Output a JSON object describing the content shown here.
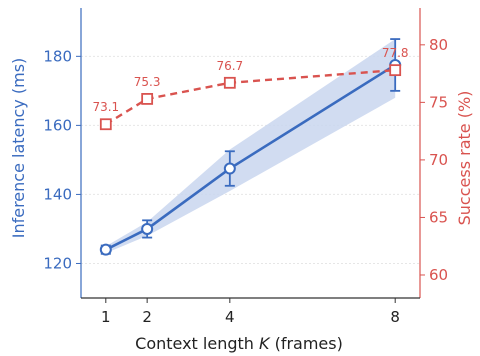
{
  "chart_data": {
    "type": "line",
    "x": [
      1,
      2,
      4,
      8
    ],
    "xlabel": "Context length K (frames)",
    "xlabel_parts": {
      "before": "Context length ",
      "italic": "K",
      "after": " (frames)"
    },
    "xticks": [
      "1",
      "2",
      "4",
      "8"
    ],
    "xlim": [
      0.4,
      8.6
    ],
    "grid": "horizontal, light dotted",
    "legend": "none",
    "left_axis": {
      "label": "Inference latency (ms)",
      "ylim": [
        110,
        194
      ],
      "ticks": [
        120,
        140,
        160,
        180
      ],
      "tick_labels": [
        "120",
        "140",
        "160",
        "180"
      ],
      "color": "#3a6bbf"
    },
    "right_axis": {
      "label": "Success rate (%)",
      "ylim": [
        58,
        83.2
      ],
      "ticks": [
        60,
        65,
        70,
        75,
        80
      ],
      "tick_labels": [
        "60",
        "65",
        "70",
        "75",
        "80"
      ],
      "color": "#d9534f"
    },
    "series": [
      {
        "axis": "left",
        "style": "solid line, circle markers, error bars, shaded band",
        "color": "#3a6bbf",
        "band_color": "#c9d6ee",
        "values": [
          124,
          130,
          147.5,
          177.5
        ],
        "error": [
          1.2,
          2.5,
          5,
          7.5
        ],
        "band_low": [
          123,
          128,
          141,
          168
        ],
        "band_high": [
          125,
          132,
          153,
          185
        ]
      },
      {
        "axis": "right",
        "style": "dashed line, square markers",
        "color": "#d9534f",
        "values": [
          73.1,
          75.3,
          76.7,
          77.8
        ],
        "data_labels": [
          "73.1",
          "75.3",
          "76.7",
          "77.8"
        ]
      }
    ]
  }
}
